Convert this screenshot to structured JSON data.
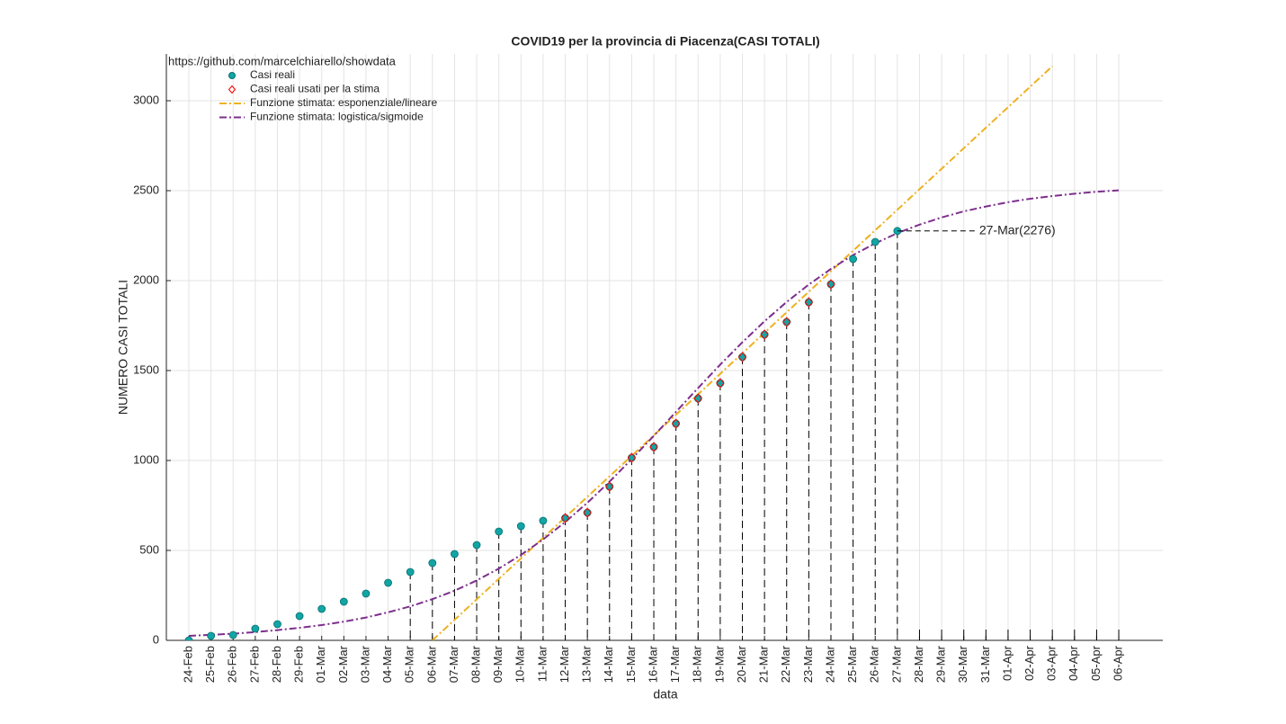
{
  "chart_data": {
    "type": "line",
    "title": "COVID19 per la provincia di Piacenza(CASI TOTALI)",
    "source": "https://github.com/marcelchiarello/showdata",
    "xlabel": "data",
    "ylabel": "NUMERO CASI TOTALI",
    "categories": [
      "24-Feb",
      "25-Feb",
      "26-Feb",
      "27-Feb",
      "28-Feb",
      "29-Feb",
      "01-Mar",
      "02-Mar",
      "03-Mar",
      "04-Mar",
      "05-Mar",
      "06-Mar",
      "07-Mar",
      "08-Mar",
      "09-Mar",
      "10-Mar",
      "11-Mar",
      "12-Mar",
      "13-Mar",
      "14-Mar",
      "15-Mar",
      "16-Mar",
      "17-Mar",
      "18-Mar",
      "19-Mar",
      "20-Mar",
      "21-Mar",
      "22-Mar",
      "23-Mar",
      "24-Mar",
      "25-Mar",
      "26-Mar",
      "27-Mar",
      "28-Mar",
      "29-Mar",
      "30-Mar",
      "31-Mar",
      "01-Apr",
      "02-Apr",
      "03-Apr",
      "04-Apr",
      "05-Apr",
      "06-Apr"
    ],
    "series": [
      {
        "name": "Casi reali",
        "color": "#12a5a5",
        "marker": "circle",
        "values": [
          0,
          25,
          30,
          65,
          90,
          135,
          175,
          215,
          260,
          320,
          380,
          430,
          480,
          530,
          605,
          635,
          665,
          680,
          710,
          855,
          1015,
          1075,
          1205,
          1345,
          1430,
          1575,
          1700,
          1770,
          1880,
          1980,
          2120,
          2215,
          2276,
          null,
          null,
          null,
          null,
          null,
          null,
          null,
          null,
          null,
          null
        ]
      },
      {
        "name": "Casi reali usati per la stima",
        "color": "#ff0000",
        "marker": "diamond",
        "values": [
          null,
          null,
          null,
          null,
          null,
          null,
          null,
          null,
          null,
          null,
          null,
          null,
          null,
          null,
          null,
          null,
          null,
          680,
          710,
          855,
          1015,
          1075,
          1205,
          1345,
          1430,
          1575,
          1700,
          1770,
          1880,
          1980,
          null,
          null,
          null,
          null,
          null,
          null,
          null,
          null,
          null,
          null,
          null,
          null,
          null
        ]
      },
      {
        "name": "Funzione stimata: esponenziale/lineare",
        "color": "#edb120",
        "marker": "dashdot",
        "values": [
          null,
          null,
          null,
          null,
          null,
          null,
          null,
          null,
          null,
          null,
          null,
          0,
          114,
          228,
          342,
          456,
          570,
          684,
          798,
          912,
          1026,
          1140,
          1254,
          1368,
          1482,
          1596,
          1710,
          1824,
          1938,
          2052,
          2166,
          2280,
          2394,
          2508,
          2622,
          2736,
          2850,
          2964,
          3078,
          3192,
          null,
          null,
          null
        ]
      },
      {
        "name": "Funzione stimata: logistica/sigmoide",
        "color": "#7e2f8e",
        "marker": "dashdot",
        "values": [
          25,
          31,
          37,
          46,
          57,
          70,
          85,
          104,
          127,
          156,
          189,
          229,
          276,
          333,
          399,
          475,
          561,
          658,
          765,
          882,
          1008,
          1137,
          1270,
          1403,
          1533,
          1657,
          1774,
          1881,
          1978,
          2065,
          2142,
          2207,
          2264,
          2311,
          2351,
          2385,
          2412,
          2436,
          2455,
          2470,
          2483,
          2494,
          2502
        ]
      }
    ],
    "annotation": "27-Mar(2276)",
    "ylim": [
      0,
      3260
    ],
    "yticks": [
      0,
      500,
      1000,
      1500,
      2000,
      2500,
      3000
    ],
    "grid": true,
    "legend": "upper left"
  }
}
